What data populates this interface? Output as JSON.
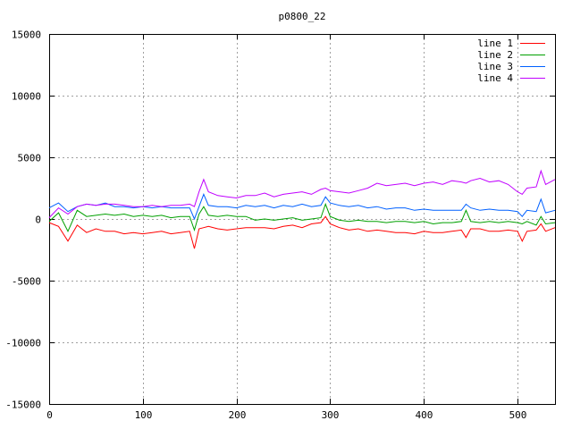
{
  "chart_data": {
    "type": "line",
    "title": "p0800_22",
    "xlabel": "",
    "ylabel": "",
    "xlim": [
      0,
      540
    ],
    "ylim": [
      -15000,
      15000
    ],
    "xticks": [
      0,
      100,
      200,
      300,
      400,
      500
    ],
    "yticks": [
      -15000,
      -10000,
      -5000,
      0,
      5000,
      10000,
      15000
    ],
    "grid": true,
    "legend_position": "top-right",
    "x": [
      0,
      10,
      20,
      30,
      40,
      50,
      60,
      70,
      80,
      90,
      100,
      110,
      120,
      130,
      140,
      150,
      155,
      160,
      165,
      170,
      180,
      190,
      200,
      210,
      220,
      230,
      240,
      250,
      260,
      270,
      280,
      290,
      295,
      300,
      310,
      320,
      330,
      340,
      350,
      360,
      370,
      380,
      390,
      400,
      410,
      420,
      430,
      440,
      445,
      450,
      460,
      470,
      480,
      490,
      500,
      505,
      510,
      520,
      525,
      530,
      540
    ],
    "series": [
      {
        "name": "line 1",
        "color": "#ff0000",
        "values": [
          -300,
          -600,
          -1800,
          -500,
          -1100,
          -800,
          -1000,
          -1000,
          -1200,
          -1100,
          -1200,
          -1100,
          -1000,
          -1200,
          -1100,
          -1000,
          -2400,
          -800,
          -700,
          -600,
          -800,
          -900,
          -800,
          -700,
          -700,
          -700,
          -800,
          -600,
          -500,
          -700,
          -400,
          -300,
          200,
          -400,
          -700,
          -900,
          -800,
          -1000,
          -900,
          -1000,
          -1100,
          -1100,
          -1200,
          -1000,
          -1100,
          -1100,
          -1000,
          -900,
          -1500,
          -800,
          -800,
          -1000,
          -1000,
          -900,
          -1000,
          -1800,
          -1000,
          -900,
          -400,
          -1000,
          -700
        ]
      },
      {
        "name": "line 2",
        "color": "#00a000",
        "values": [
          -200,
          500,
          -1000,
          700,
          200,
          300,
          400,
          300,
          400,
          200,
          300,
          200,
          300,
          100,
          200,
          200,
          -900,
          400,
          1000,
          300,
          200,
          300,
          200,
          200,
          -100,
          0,
          -100,
          0,
          100,
          -100,
          0,
          100,
          1200,
          200,
          -100,
          -200,
          -100,
          -200,
          -200,
          -300,
          -200,
          -200,
          -300,
          -200,
          -400,
          -300,
          -300,
          -200,
          700,
          -200,
          -300,
          -200,
          -300,
          -200,
          -300,
          -400,
          -200,
          -500,
          200,
          -400,
          -300
        ]
      },
      {
        "name": "line 3",
        "color": "#0060ff",
        "values": [
          900,
          1300,
          600,
          1000,
          1200,
          1100,
          1300,
          1000,
          1000,
          900,
          1000,
          900,
          1000,
          900,
          900,
          900,
          0,
          1000,
          2000,
          1100,
          1000,
          1000,
          900,
          1100,
          1000,
          1100,
          900,
          1100,
          1000,
          1200,
          1000,
          1100,
          1800,
          1300,
          1100,
          1000,
          1100,
          900,
          1000,
          800,
          900,
          900,
          700,
          800,
          700,
          700,
          700,
          700,
          1200,
          900,
          700,
          800,
          700,
          700,
          600,
          200,
          700,
          600,
          1600,
          500,
          700
        ]
      },
      {
        "name": "line 4",
        "color": "#c000ff",
        "values": [
          100,
          900,
          400,
          1000,
          1200,
          1100,
          1200,
          1200,
          1100,
          1000,
          1000,
          1100,
          1000,
          1100,
          1100,
          1200,
          1000,
          2200,
          3200,
          2200,
          1900,
          1800,
          1700,
          1900,
          1900,
          2100,
          1800,
          2000,
          2100,
          2200,
          2000,
          2400,
          2500,
          2300,
          2200,
          2100,
          2300,
          2500,
          2900,
          2700,
          2800,
          2900,
          2700,
          2900,
          3000,
          2800,
          3100,
          3000,
          2900,
          3100,
          3300,
          3000,
          3100,
          2800,
          2200,
          2000,
          2500,
          2600,
          3900,
          2800,
          3200
        ]
      }
    ]
  }
}
